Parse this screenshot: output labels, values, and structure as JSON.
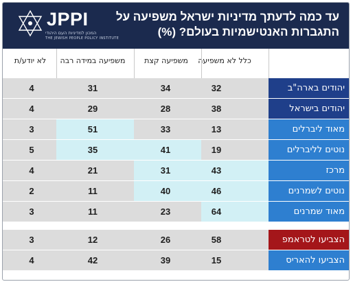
{
  "header": {
    "title": "עד כמה לדעתך מדיניות ישראל משפיעה על התגברות האנטישמיות בעולם? (%)",
    "logo_text": "JPPI",
    "logo_sub_hebrew": "המכון למדיניות העם היהודי",
    "logo_sub_english": "THE JEWISH PEOPLE POLICY INSTITUTE"
  },
  "colors": {
    "header_bg": "#1b2a4e",
    "label_dark": "#1f3f8a",
    "label_light": "#2e7fd0",
    "label_red": "#a4161a",
    "cell_gray": "#dcdcdc",
    "cell_highlight": "#d2f0f5"
  },
  "chart_data": {
    "type": "table",
    "columns": [
      "כלל לא משפיעה",
      "משפיעה קצת",
      "משפיעה במידה רבה",
      "לא יודע/ת"
    ],
    "rows": [
      {
        "label": "יהודים בארה\"ב",
        "values": [
          32,
          34,
          31,
          4
        ],
        "label_style": "dark",
        "highlight": [
          false,
          false,
          false,
          false
        ]
      },
      {
        "label": "יהודים בישראל",
        "values": [
          38,
          28,
          29,
          4
        ],
        "label_style": "dark",
        "highlight": [
          false,
          false,
          false,
          false
        ]
      },
      {
        "label": "מאוד ליברלים",
        "values": [
          13,
          33,
          51,
          3
        ],
        "label_style": "light",
        "highlight": [
          false,
          false,
          true,
          false
        ]
      },
      {
        "label": "נוטים לליברלים",
        "values": [
          19,
          41,
          35,
          5
        ],
        "label_style": "light",
        "highlight": [
          false,
          true,
          true,
          false
        ]
      },
      {
        "label": "מרכז",
        "values": [
          43,
          31,
          21,
          4
        ],
        "label_style": "light",
        "highlight": [
          true,
          true,
          false,
          false
        ]
      },
      {
        "label": "נוטים לשמרנים",
        "values": [
          46,
          40,
          11,
          2
        ],
        "label_style": "light",
        "highlight": [
          true,
          true,
          false,
          false
        ]
      },
      {
        "label": "מאוד שמרנים",
        "values": [
          64,
          23,
          11,
          3
        ],
        "label_style": "light",
        "highlight": [
          true,
          false,
          false,
          false
        ]
      },
      {
        "label": "הצביעו לטראמפ",
        "values": [
          58,
          26,
          12,
          3
        ],
        "label_style": "red",
        "highlight": [
          false,
          false,
          false,
          false
        ]
      },
      {
        "label": "הצביעו להאריס",
        "values": [
          15,
          39,
          42,
          4
        ],
        "label_style": "light",
        "highlight": [
          false,
          false,
          false,
          false
        ]
      }
    ]
  }
}
